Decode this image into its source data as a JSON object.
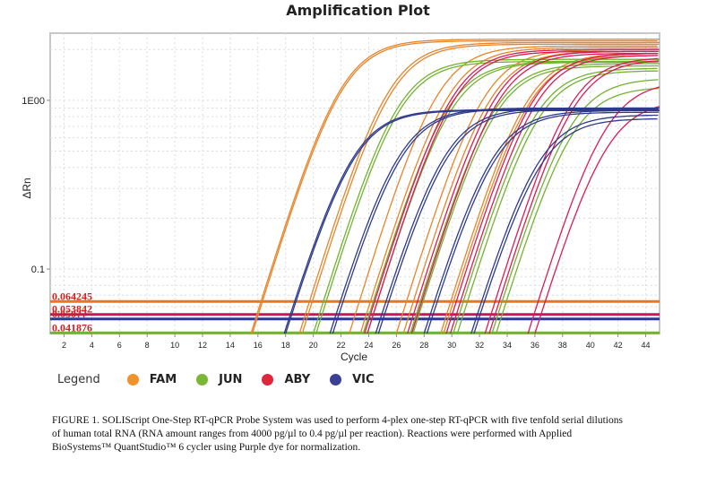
{
  "chart_data": {
    "type": "line",
    "title": "Amplification Plot",
    "xlabel": "Cycle",
    "ylabel": "ΔRn",
    "yscale": "log",
    "xlim": [
      1,
      45
    ],
    "ylim": [
      0.0415,
      2.5
    ],
    "x_ticks": [
      2,
      4,
      6,
      8,
      10,
      12,
      14,
      16,
      18,
      20,
      22,
      24,
      26,
      28,
      30,
      32,
      34,
      36,
      38,
      40,
      42,
      44
    ],
    "y_ticks": [
      {
        "value": 1,
        "label": "1E00"
      },
      {
        "value": 0.1,
        "label": "0.1"
      }
    ],
    "grid": true,
    "legend": {
      "title": "Legend",
      "position": "bottom-left",
      "entries": [
        {
          "name": "FAM",
          "color": "#f0922a"
        },
        {
          "name": "JUN",
          "color": "#7ab833"
        },
        {
          "name": "ABY",
          "color": "#e0263a"
        },
        {
          "name": "VIC",
          "color": "#3b3f96"
        }
      ]
    },
    "thresholds": [
      {
        "label": "0.064245",
        "value": 0.064245,
        "color": "#e8771f"
      },
      {
        "label": "0.053842",
        "value": 0.053842,
        "color": "#c8175a"
      },
      {
        "label": "0.050??",
        "value": 0.0506,
        "color": "#2a3a8f"
      },
      {
        "label": "0.041876",
        "value": 0.041876,
        "color": "#6fb33a"
      }
    ],
    "series": [
      {
        "name": "FAM",
        "color": "#e8842a",
        "curves": [
          {
            "start_cycle": 15.5,
            "plateau": 2.3
          },
          {
            "start_cycle": 15.6,
            "plateau": 2.25
          },
          {
            "start_cycle": 19.0,
            "plateau": 2.2
          },
          {
            "start_cycle": 19.2,
            "plateau": 2.15
          },
          {
            "start_cycle": 22.6,
            "plateau": 2.1
          },
          {
            "start_cycle": 23.4,
            "plateau": 2.05
          },
          {
            "start_cycle": 26.0,
            "plateau": 2.0
          },
          {
            "start_cycle": 26.5,
            "plateau": 1.95
          },
          {
            "start_cycle": 29.2,
            "plateau": 1.9
          },
          {
            "start_cycle": 29.4,
            "plateau": 1.85
          }
        ]
      },
      {
        "name": "JUN",
        "color": "#72b332",
        "curves": [
          {
            "start_cycle": 20.0,
            "plateau": 1.75
          },
          {
            "start_cycle": 20.2,
            "plateau": 1.7
          },
          {
            "start_cycle": 23.6,
            "plateau": 1.7
          },
          {
            "start_cycle": 23.9,
            "plateau": 1.68
          },
          {
            "start_cycle": 27.0,
            "plateau": 1.65
          },
          {
            "start_cycle": 27.2,
            "plateau": 1.6
          },
          {
            "start_cycle": 30.1,
            "plateau": 1.55
          },
          {
            "start_cycle": 30.4,
            "plateau": 1.5
          },
          {
            "start_cycle": 32.9,
            "plateau": 1.35
          },
          {
            "start_cycle": 33.2,
            "plateau": 1.2
          }
        ]
      },
      {
        "name": "ABY",
        "color": "#d81d56",
        "curves": [
          {
            "start_cycle": 23.7,
            "plateau": 2.0
          },
          {
            "start_cycle": 23.9,
            "plateau": 1.95
          },
          {
            "start_cycle": 26.8,
            "plateau": 1.95
          },
          {
            "start_cycle": 27.1,
            "plateau": 1.9
          },
          {
            "start_cycle": 29.6,
            "plateau": 1.9
          },
          {
            "start_cycle": 29.9,
            "plateau": 1.85
          },
          {
            "start_cycle": 32.4,
            "plateau": 1.8
          },
          {
            "start_cycle": 32.7,
            "plateau": 1.75
          },
          {
            "start_cycle": 35.5,
            "plateau": 1.3
          },
          {
            "start_cycle": 36.0,
            "plateau": 1.0
          }
        ]
      },
      {
        "name": "VIC",
        "color": "#2e3a8c",
        "curves": [
          {
            "start_cycle": 17.9,
            "plateau": 0.88
          },
          {
            "start_cycle": 18.0,
            "plateau": 0.87
          },
          {
            "start_cycle": 21.2,
            "plateau": 0.9
          },
          {
            "start_cycle": 21.4,
            "plateau": 0.89
          },
          {
            "start_cycle": 24.5,
            "plateau": 0.9
          },
          {
            "start_cycle": 24.7,
            "plateau": 0.88
          },
          {
            "start_cycle": 28.0,
            "plateau": 0.87
          },
          {
            "start_cycle": 28.2,
            "plateau": 0.85
          },
          {
            "start_cycle": 31.4,
            "plateau": 0.82
          },
          {
            "start_cycle": 31.6,
            "plateau": 0.78
          }
        ]
      }
    ]
  },
  "caption": "FIGURE 1. SOLIScript One-Step RT-qPCR Probe System was used to perform 4-plex one-step RT-qPCR with five tenfold serial dilutions of human total RNA (RNA amount ranges from 4000 pg/µl to 0.4 pg/µl per reaction). Reactions were performed with Applied BioSystems™ QuantStudio™ 6 cycler using Purple dye for normalization."
}
